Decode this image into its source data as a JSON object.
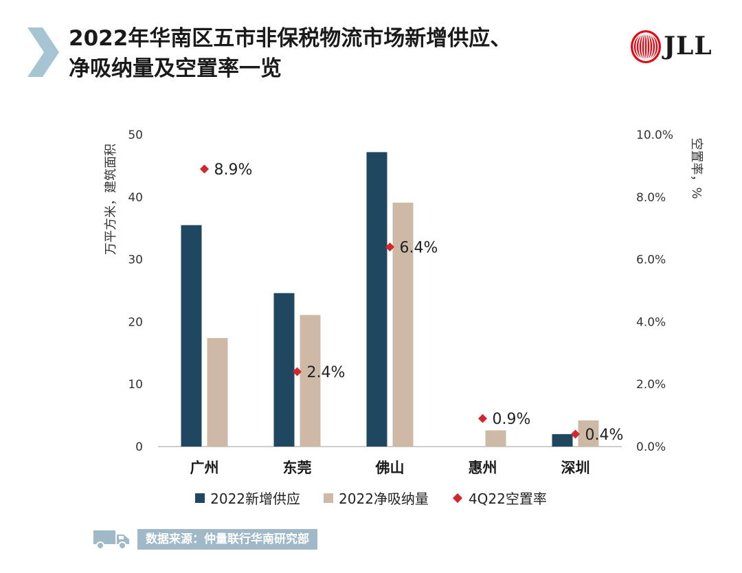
{
  "header": {
    "title_line1": "2022年华南区五市非保税物流市场新增供应、",
    "title_line2": "净吸纳量及空置率一览",
    "logo_text": "JLL"
  },
  "chart_data": {
    "type": "bar",
    "categories": [
      "广州",
      "东莞",
      "佛山",
      "惠州",
      "深圳"
    ],
    "series": [
      {
        "name": "2022新增供应",
        "kind": "bar",
        "axis": "left",
        "color": "#1f4760",
        "values": [
          35.5,
          24.6,
          47.2,
          0,
          2.0
        ]
      },
      {
        "name": "2022净吸纳量",
        "kind": "bar",
        "axis": "left",
        "color": "#cdb9a6",
        "values": [
          17.4,
          21.1,
          39.1,
          2.6,
          4.2
        ]
      },
      {
        "name": "4Q22空置率",
        "kind": "scatter",
        "axis": "right",
        "color": "#d0282e",
        "values": [
          8.9,
          2.4,
          6.4,
          0.9,
          0.4
        ],
        "labels": [
          "8.9%",
          "2.4%",
          "6.4%",
          "0.9%",
          "0.4%"
        ]
      }
    ],
    "ylabel": "万平方米，建筑面积",
    "y2label": "空置率，%",
    "ylim": [
      0,
      50
    ],
    "y2lim": [
      0,
      10
    ],
    "yticks": [
      "0",
      "10",
      "20",
      "30",
      "40",
      "50"
    ],
    "y2ticks": [
      "0.0%",
      "2.0%",
      "4.0%",
      "6.0%",
      "8.0%",
      "10.0%"
    ],
    "legend_position": "bottom"
  },
  "footer": {
    "source": "数据来源：仲量联行华南研究部",
    "icon": "truck-icon"
  }
}
